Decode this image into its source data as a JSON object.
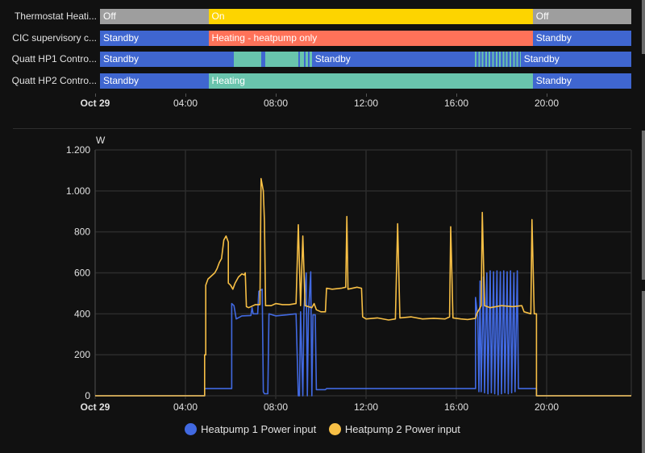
{
  "colors": {
    "off": "#9e9e9e",
    "on": "#fdd400",
    "standby": "#3f66d0",
    "heating_hp_only": "#ff7259",
    "heating": "#69c4ad",
    "hp1": "#4169e1",
    "hp2": "#f7bf45",
    "grid": "#2c2c2c",
    "axis_text": "#e1e1e1"
  },
  "timeline": {
    "hours_span": 24,
    "rows": [
      {
        "label": "Thermostat Heati...",
        "segments": [
          {
            "start": 0,
            "end": 4.9,
            "state": "off",
            "text": "Off"
          },
          {
            "start": 4.9,
            "end": 19.55,
            "state": "on",
            "text": "On"
          },
          {
            "start": 19.55,
            "end": 24,
            "state": "off",
            "text": "Off"
          }
        ]
      },
      {
        "label": "CIC supervisory c...",
        "segments": [
          {
            "start": 0,
            "end": 4.9,
            "state": "standby",
            "text": "Standby"
          },
          {
            "start": 4.9,
            "end": 19.55,
            "state": "heating_hp_only",
            "text": "Heating - heatpump only"
          },
          {
            "start": 19.55,
            "end": 24,
            "state": "standby",
            "text": "Standby"
          }
        ]
      },
      {
        "label": "Quatt HP1 Contro...",
        "segments": [
          {
            "start": 0,
            "end": 6.05,
            "state": "standby",
            "text": "Standby"
          },
          {
            "start": 6.05,
            "end": 7.3,
            "state": "heating",
            "text": ""
          },
          {
            "start": 7.3,
            "end": 7.45,
            "state": "standby",
            "text": ""
          },
          {
            "start": 7.45,
            "end": 8.95,
            "state": "heating",
            "text": ""
          },
          {
            "start": 8.95,
            "end": 9.05,
            "state": "standby",
            "text": ""
          },
          {
            "start": 9.05,
            "end": 9.2,
            "state": "heating",
            "text": ""
          },
          {
            "start": 9.2,
            "end": 9.27,
            "state": "standby",
            "text": ""
          },
          {
            "start": 9.27,
            "end": 9.4,
            "state": "heating",
            "text": ""
          },
          {
            "start": 9.4,
            "end": 9.46,
            "state": "standby",
            "text": ""
          },
          {
            "start": 9.46,
            "end": 9.57,
            "state": "heating",
            "text": ""
          },
          {
            "start": 9.57,
            "end": 16.95,
            "state": "standby",
            "text": "Standby"
          },
          {
            "start": 16.95,
            "end": 19.0,
            "state": "heating_stripes",
            "text": ""
          },
          {
            "start": 19.0,
            "end": 24,
            "state": "standby",
            "text": "Standby"
          }
        ]
      },
      {
        "label": "Quatt HP2 Contro...",
        "segments": [
          {
            "start": 0,
            "end": 4.9,
            "state": "standby",
            "text": "Standby"
          },
          {
            "start": 4.9,
            "end": 19.55,
            "state": "heating",
            "text": "Heating"
          },
          {
            "start": 19.55,
            "end": 24,
            "state": "standby",
            "text": "Standby"
          }
        ]
      }
    ],
    "axis_labels": [
      {
        "hour": 0,
        "text": "Oct 29",
        "bold": true
      },
      {
        "hour": 4,
        "text": "04:00"
      },
      {
        "hour": 8,
        "text": "08:00"
      },
      {
        "hour": 12,
        "text": "12:00"
      },
      {
        "hour": 16,
        "text": "16:00"
      },
      {
        "hour": 20,
        "text": "20:00"
      }
    ]
  },
  "legend": {
    "hp1_label": "Heatpump 1 Power input",
    "hp2_label": "Heatpump 2 Power input"
  },
  "chart_data": {
    "type": "line",
    "title": "",
    "xlabel": "",
    "ylabel": "W",
    "ylim": [
      0,
      1200
    ],
    "xlim_hours": [
      0,
      23.75
    ],
    "yticks": [
      "0",
      "200",
      "400",
      "600",
      "800",
      "1.000",
      "1.200"
    ],
    "ytick_values": [
      0,
      200,
      400,
      600,
      800,
      1000,
      1200
    ],
    "xticks": [
      {
        "hour": 0,
        "text": "Oct 29",
        "bold": true
      },
      {
        "hour": 4,
        "text": "04:00"
      },
      {
        "hour": 8,
        "text": "08:00"
      },
      {
        "hour": 12,
        "text": "12:00"
      },
      {
        "hour": 16,
        "text": "16:00"
      },
      {
        "hour": 20,
        "text": "20:00"
      }
    ],
    "grid": true,
    "legend_position": "bottom",
    "series": [
      {
        "name": "Heatpump 1 Power input",
        "color": "#4169e1",
        "points": [
          [
            0,
            0
          ],
          [
            4.85,
            0
          ],
          [
            4.85,
            35
          ],
          [
            6.05,
            35
          ],
          [
            6.05,
            450
          ],
          [
            6.15,
            440
          ],
          [
            6.25,
            375
          ],
          [
            6.5,
            390
          ],
          [
            6.9,
            392
          ],
          [
            6.95,
            430
          ],
          [
            7.0,
            400
          ],
          [
            7.2,
            400
          ],
          [
            7.25,
            510
          ],
          [
            7.4,
            520
          ],
          [
            7.45,
            20
          ],
          [
            7.5,
            10
          ],
          [
            7.65,
            10
          ],
          [
            7.7,
            400
          ],
          [
            8.0,
            390
          ],
          [
            8.5,
            395
          ],
          [
            8.9,
            400
          ],
          [
            9.0,
            0
          ],
          [
            9.05,
            0
          ],
          [
            9.1,
            410
          ],
          [
            9.2,
            0
          ],
          [
            9.25,
            420
          ],
          [
            9.35,
            600
          ],
          [
            9.4,
            0
          ],
          [
            9.45,
            400
          ],
          [
            9.55,
            605
          ],
          [
            9.6,
            0
          ],
          [
            9.65,
            395
          ],
          [
            9.75,
            395
          ],
          [
            9.8,
            30
          ],
          [
            10.2,
            30
          ],
          [
            10.25,
            35
          ],
          [
            16.8,
            35
          ],
          [
            16.85,
            35
          ],
          [
            16.85,
            480
          ],
          [
            16.95,
            380
          ],
          [
            17.0,
            20
          ],
          [
            17.05,
            560
          ],
          [
            17.1,
            20
          ],
          [
            17.2,
            580
          ],
          [
            17.25,
            15
          ],
          [
            17.35,
            600
          ],
          [
            17.4,
            10
          ],
          [
            17.5,
            610
          ],
          [
            17.55,
            15
          ],
          [
            17.65,
            605
          ],
          [
            17.7,
            10
          ],
          [
            17.8,
            610
          ],
          [
            17.85,
            5
          ],
          [
            17.95,
            605
          ],
          [
            18.0,
            10
          ],
          [
            18.1,
            610
          ],
          [
            18.15,
            15
          ],
          [
            18.25,
            605
          ],
          [
            18.3,
            10
          ],
          [
            18.4,
            610
          ],
          [
            18.45,
            15
          ],
          [
            18.55,
            600
          ],
          [
            18.6,
            20
          ],
          [
            18.7,
            610
          ],
          [
            18.75,
            35
          ],
          [
            19.5,
            35
          ],
          [
            19.55,
            35
          ],
          [
            19.55,
            0
          ],
          [
            23.75,
            0
          ]
        ]
      },
      {
        "name": "Heatpump 2 Power input",
        "color": "#f7bf45",
        "points": [
          [
            0,
            0
          ],
          [
            4.85,
            0
          ],
          [
            4.85,
            200
          ],
          [
            4.9,
            200
          ],
          [
            4.9,
            540
          ],
          [
            5.0,
            570
          ],
          [
            5.1,
            580
          ],
          [
            5.3,
            600
          ],
          [
            5.4,
            620
          ],
          [
            5.5,
            650
          ],
          [
            5.6,
            670
          ],
          [
            5.7,
            760
          ],
          [
            5.8,
            780
          ],
          [
            5.9,
            750
          ],
          [
            5.9,
            550
          ],
          [
            6.0,
            540
          ],
          [
            6.1,
            520
          ],
          [
            6.2,
            550
          ],
          [
            6.35,
            580
          ],
          [
            6.5,
            595
          ],
          [
            6.6,
            590
          ],
          [
            6.65,
            600
          ],
          [
            6.7,
            435
          ],
          [
            6.8,
            430
          ],
          [
            7.0,
            440
          ],
          [
            7.1,
            445
          ],
          [
            7.3,
            445
          ],
          [
            7.35,
            1060
          ],
          [
            7.45,
            1000
          ],
          [
            7.5,
            850
          ],
          [
            7.55,
            440
          ],
          [
            7.8,
            440
          ],
          [
            8.0,
            450
          ],
          [
            8.3,
            445
          ],
          [
            8.6,
            445
          ],
          [
            8.9,
            450
          ],
          [
            9.0,
            835
          ],
          [
            9.1,
            440
          ],
          [
            9.2,
            780
          ],
          [
            9.3,
            440
          ],
          [
            9.6,
            430
          ],
          [
            9.7,
            450
          ],
          [
            9.8,
            420
          ],
          [
            10.0,
            410
          ],
          [
            10.2,
            410
          ],
          [
            10.25,
            525
          ],
          [
            10.5,
            520
          ],
          [
            10.9,
            525
          ],
          [
            11.1,
            530
          ],
          [
            11.15,
            875
          ],
          [
            11.2,
            520
          ],
          [
            11.6,
            530
          ],
          [
            11.8,
            525
          ],
          [
            11.85,
            385
          ],
          [
            12.0,
            375
          ],
          [
            12.5,
            380
          ],
          [
            13.0,
            370
          ],
          [
            13.3,
            375
          ],
          [
            13.4,
            840
          ],
          [
            13.5,
            380
          ],
          [
            14.0,
            385
          ],
          [
            14.5,
            375
          ],
          [
            15.0,
            378
          ],
          [
            15.5,
            375
          ],
          [
            15.7,
            385
          ],
          [
            15.75,
            825
          ],
          [
            15.85,
            380
          ],
          [
            16.2,
            375
          ],
          [
            16.5,
            372
          ],
          [
            16.85,
            378
          ],
          [
            16.9,
            400
          ],
          [
            17.0,
            420
          ],
          [
            17.1,
            440
          ],
          [
            17.15,
            895
          ],
          [
            17.25,
            440
          ],
          [
            17.5,
            430
          ],
          [
            18.0,
            440
          ],
          [
            18.5,
            435
          ],
          [
            18.9,
            440
          ],
          [
            19.0,
            410
          ],
          [
            19.3,
            400
          ],
          [
            19.35,
            860
          ],
          [
            19.45,
            400
          ],
          [
            19.55,
            400
          ],
          [
            19.55,
            0
          ],
          [
            23.75,
            0
          ]
        ]
      }
    ]
  }
}
